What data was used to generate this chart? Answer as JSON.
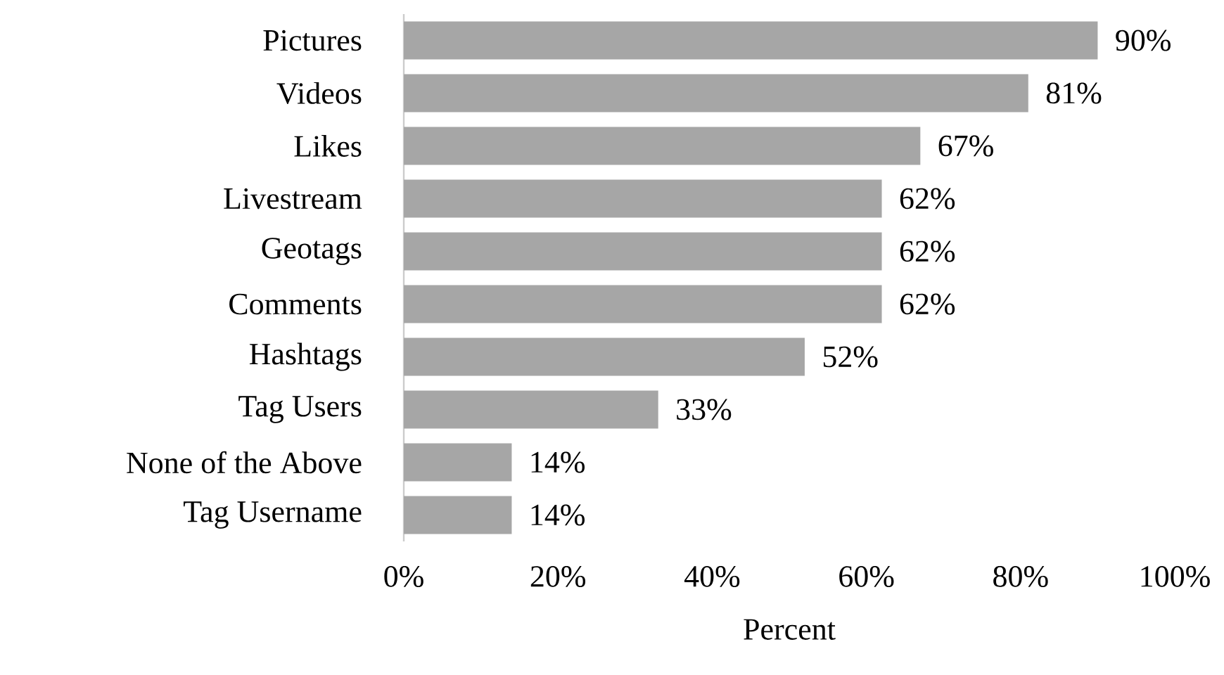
{
  "chart_data": {
    "type": "bar",
    "orientation": "horizontal",
    "xlabel": "Percent",
    "categories": [
      "Pictures",
      "Videos",
      "Likes",
      "Livestream",
      "Geotags",
      "Comments",
      "Hashtags",
      "Tag Users",
      "None of the Above",
      "Tag Username"
    ],
    "values": [
      90,
      81,
      67,
      62,
      62,
      62,
      52,
      33,
      14,
      14
    ],
    "value_labels": [
      "90%",
      "81%",
      "67%",
      "62%",
      "62%",
      "62%",
      "52%",
      "33%",
      "14%",
      "14%"
    ],
    "color": "#a6a6a6",
    "xlim": [
      0,
      100
    ],
    "xticks": [
      {
        "value": 0,
        "label": "0%"
      },
      {
        "value": 20,
        "label": "20%"
      },
      {
        "value": 40,
        "label": "40%"
      },
      {
        "value": 60,
        "label": "60%"
      },
      {
        "value": 80,
        "label": "80%"
      },
      {
        "value": 100,
        "label": "100%"
      }
    ]
  }
}
